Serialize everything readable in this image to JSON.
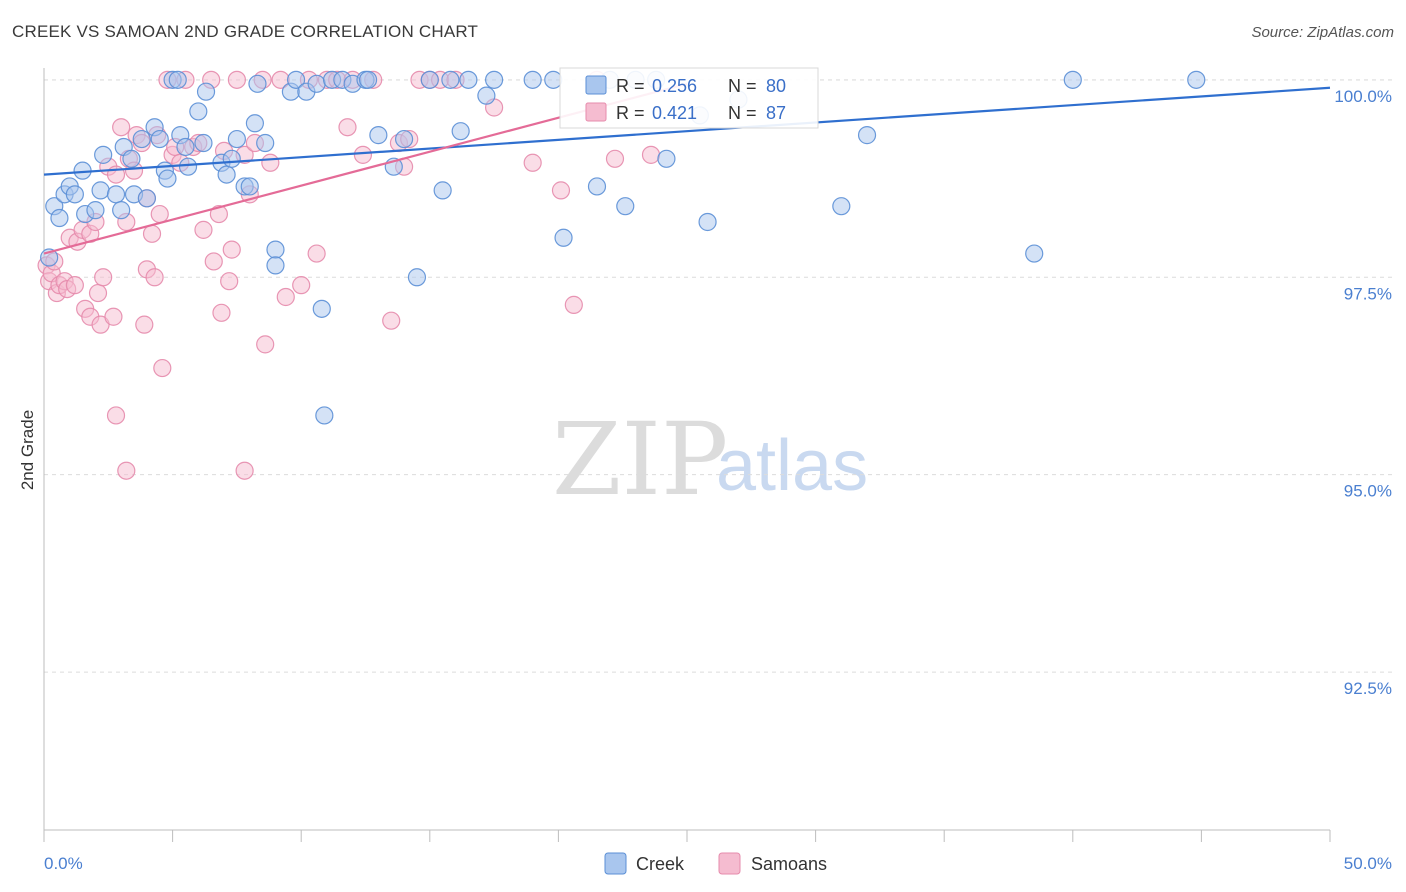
{
  "header": {
    "title": "CREEK VS SAMOAN 2ND GRADE CORRELATION CHART",
    "source": "Source: ZipAtlas.com"
  },
  "watermark": {
    "zip": "ZIP",
    "atlas": "atlas"
  },
  "colors": {
    "creek_fill": "#a9c6ee",
    "creek_stroke": "#5b8fd6",
    "creek_line": "#2f6fcf",
    "samoans_fill": "#f5bcd0",
    "samoans_stroke": "#e68bac",
    "samoans_line": "#e46b97",
    "tick_text": "#4a7fd0",
    "grid": "#dcdcdc"
  },
  "legend": {
    "rows": [
      {
        "r_label": "R =",
        "r_value": "0.256",
        "n_label": "N =",
        "n_value": "80"
      },
      {
        "r_label": "R =",
        "r_value": "0.421",
        "n_label": "N =",
        "n_value": "87"
      }
    ]
  },
  "chart_data": {
    "type": "scatter",
    "title": "CREEK VS SAMOAN 2ND GRADE CORRELATION CHART",
    "xlabel": "",
    "ylabel": "2nd Grade",
    "xlim": [
      0,
      50
    ],
    "ylim": [
      90.5,
      100.15
    ],
    "x_tick_labels": [
      "0.0%",
      "50.0%"
    ],
    "y_ticks": [
      100.0,
      97.5,
      95.0,
      92.5
    ],
    "y_tick_labels": [
      "100.0%",
      "97.5%",
      "95.0%",
      "92.5%"
    ],
    "legend_position": "bottom",
    "series": [
      {
        "name": "Creek",
        "r": 0.256,
        "n": 80,
        "trend": {
          "x": [
            0,
            50
          ],
          "y": [
            98.8,
            99.9
          ]
        },
        "points": [
          [
            0.2,
            97.75
          ],
          [
            0.4,
            98.4
          ],
          [
            0.6,
            98.25
          ],
          [
            0.8,
            98.55
          ],
          [
            1.0,
            98.65
          ],
          [
            1.2,
            98.55
          ],
          [
            1.5,
            98.85
          ],
          [
            1.6,
            98.3
          ],
          [
            2.0,
            98.35
          ],
          [
            2.2,
            98.6
          ],
          [
            2.3,
            99.05
          ],
          [
            2.8,
            98.55
          ],
          [
            3.0,
            98.35
          ],
          [
            3.1,
            99.15
          ],
          [
            3.4,
            99.0
          ],
          [
            3.5,
            98.55
          ],
          [
            3.8,
            99.25
          ],
          [
            4.0,
            98.5
          ],
          [
            4.3,
            99.4
          ],
          [
            4.5,
            99.25
          ],
          [
            4.7,
            98.85
          ],
          [
            4.8,
            98.75
          ],
          [
            5.0,
            100.0
          ],
          [
            5.2,
            100.0
          ],
          [
            5.3,
            99.3
          ],
          [
            5.5,
            99.15
          ],
          [
            5.6,
            98.9
          ],
          [
            6.0,
            99.6
          ],
          [
            6.2,
            99.2
          ],
          [
            6.3,
            99.85
          ],
          [
            6.9,
            98.95
          ],
          [
            7.1,
            98.8
          ],
          [
            7.3,
            99.0
          ],
          [
            7.5,
            99.25
          ],
          [
            7.8,
            98.65
          ],
          [
            8.0,
            98.65
          ],
          [
            8.2,
            99.45
          ],
          [
            8.3,
            99.95
          ],
          [
            8.6,
            99.2
          ],
          [
            9.0,
            97.85
          ],
          [
            9.0,
            97.65
          ],
          [
            9.6,
            99.85
          ],
          [
            9.8,
            100.0
          ],
          [
            10.2,
            99.85
          ],
          [
            10.6,
            99.95
          ],
          [
            10.8,
            97.1
          ],
          [
            10.9,
            95.75
          ],
          [
            11.2,
            100.0
          ],
          [
            11.6,
            100.0
          ],
          [
            12.0,
            99.95
          ],
          [
            12.5,
            100.0
          ],
          [
            12.6,
            100.0
          ],
          [
            13.0,
            99.3
          ],
          [
            13.6,
            98.9
          ],
          [
            14.0,
            99.25
          ],
          [
            14.5,
            97.5
          ],
          [
            15.0,
            100.0
          ],
          [
            15.5,
            98.6
          ],
          [
            15.8,
            100.0
          ],
          [
            16.2,
            99.35
          ],
          [
            16.5,
            100.0
          ],
          [
            17.2,
            99.8
          ],
          [
            17.5,
            100.0
          ],
          [
            19.0,
            100.0
          ],
          [
            19.8,
            100.0
          ],
          [
            20.2,
            98.0
          ],
          [
            21.5,
            98.65
          ],
          [
            22.0,
            100.0
          ],
          [
            22.6,
            98.4
          ],
          [
            23.0,
            100.0
          ],
          [
            23.8,
            100.0
          ],
          [
            24.2,
            99.0
          ],
          [
            25.5,
            99.55
          ],
          [
            25.8,
            98.2
          ],
          [
            27.0,
            99.75
          ],
          [
            31.0,
            98.4
          ],
          [
            32.0,
            99.3
          ],
          [
            38.5,
            97.8
          ],
          [
            40.0,
            100.0
          ],
          [
            44.8,
            100.0
          ]
        ]
      },
      {
        "name": "Samoans",
        "r": 0.421,
        "n": 87,
        "trend": {
          "x": [
            0,
            25
          ],
          "y": [
            97.8,
            99.95
          ]
        },
        "points": [
          [
            0.1,
            97.65
          ],
          [
            0.2,
            97.45
          ],
          [
            0.3,
            97.55
          ],
          [
            0.4,
            97.7
          ],
          [
            0.5,
            97.3
          ],
          [
            0.6,
            97.4
          ],
          [
            0.8,
            97.45
          ],
          [
            0.9,
            97.35
          ],
          [
            1.0,
            98.0
          ],
          [
            1.2,
            97.4
          ],
          [
            1.3,
            97.95
          ],
          [
            1.5,
            98.1
          ],
          [
            1.6,
            97.1
          ],
          [
            1.8,
            98.05
          ],
          [
            1.8,
            97.0
          ],
          [
            2.0,
            98.2
          ],
          [
            2.1,
            97.3
          ],
          [
            2.2,
            96.9
          ],
          [
            2.3,
            97.5
          ],
          [
            2.5,
            98.9
          ],
          [
            2.7,
            97.0
          ],
          [
            2.8,
            98.8
          ],
          [
            2.8,
            95.75
          ],
          [
            3.0,
            99.4
          ],
          [
            3.2,
            98.2
          ],
          [
            3.2,
            95.05
          ],
          [
            3.3,
            99.0
          ],
          [
            3.5,
            98.85
          ],
          [
            3.6,
            99.3
          ],
          [
            3.8,
            99.2
          ],
          [
            3.9,
            96.9
          ],
          [
            4.0,
            98.5
          ],
          [
            4.0,
            97.6
          ],
          [
            4.2,
            98.05
          ],
          [
            4.3,
            97.5
          ],
          [
            4.4,
            99.3
          ],
          [
            4.5,
            98.3
          ],
          [
            4.6,
            96.35
          ],
          [
            4.8,
            100.0
          ],
          [
            5.0,
            99.05
          ],
          [
            5.1,
            99.15
          ],
          [
            5.3,
            98.95
          ],
          [
            5.5,
            100.0
          ],
          [
            5.8,
            99.15
          ],
          [
            6.0,
            99.2
          ],
          [
            6.2,
            98.1
          ],
          [
            6.5,
            100.0
          ],
          [
            6.6,
            97.7
          ],
          [
            6.8,
            98.3
          ],
          [
            6.9,
            97.05
          ],
          [
            7.0,
            99.1
          ],
          [
            7.2,
            97.45
          ],
          [
            7.3,
            97.85
          ],
          [
            7.5,
            100.0
          ],
          [
            7.8,
            99.05
          ],
          [
            7.8,
            95.05
          ],
          [
            8.0,
            98.55
          ],
          [
            8.2,
            99.2
          ],
          [
            8.5,
            100.0
          ],
          [
            8.6,
            96.65
          ],
          [
            8.8,
            98.95
          ],
          [
            9.2,
            100.0
          ],
          [
            9.4,
            97.25
          ],
          [
            10.0,
            97.4
          ],
          [
            10.3,
            100.0
          ],
          [
            10.6,
            97.8
          ],
          [
            11.0,
            100.0
          ],
          [
            11.4,
            100.0
          ],
          [
            11.8,
            99.4
          ],
          [
            12.0,
            100.0
          ],
          [
            12.4,
            99.05
          ],
          [
            12.8,
            100.0
          ],
          [
            13.5,
            96.95
          ],
          [
            13.8,
            99.2
          ],
          [
            14.0,
            98.9
          ],
          [
            14.2,
            99.25
          ],
          [
            14.6,
            100.0
          ],
          [
            15.0,
            100.0
          ],
          [
            15.4,
            100.0
          ],
          [
            16.0,
            100.0
          ],
          [
            17.5,
            99.65
          ],
          [
            19.0,
            98.95
          ],
          [
            20.1,
            98.6
          ],
          [
            20.6,
            97.15
          ],
          [
            21.5,
            100.0
          ],
          [
            22.2,
            99.0
          ],
          [
            23.6,
            99.05
          ]
        ]
      }
    ]
  },
  "bottom_legend": {
    "items": [
      "Creek",
      "Samoans"
    ]
  }
}
